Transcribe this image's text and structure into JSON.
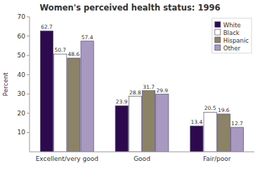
{
  "chart_data": {
    "type": "bar",
    "title": "Women's perceived health status: 1996",
    "categories": [
      "Excellent/very good",
      "Good",
      "Fair/poor"
    ],
    "series": [
      {
        "name": "White",
        "color": "#2d0a4e",
        "values": [
          62.7,
          23.9,
          13.4
        ]
      },
      {
        "name": "Black",
        "color": "#ffffff",
        "values": [
          50.7,
          28.8,
          20.5
        ]
      },
      {
        "name": "Hispanic",
        "color": "#8b8268",
        "values": [
          48.6,
          31.7,
          19.6
        ]
      },
      {
        "name": "Other",
        "color": "#a899c0",
        "values": [
          57.4,
          29.9,
          12.7
        ]
      }
    ],
    "ylabel": "Percent",
    "ylim": [
      0,
      70
    ],
    "yticks": [
      10,
      20,
      30,
      40,
      50,
      60,
      70
    ],
    "grid": false,
    "legend": "upper right",
    "data_labels": true
  }
}
